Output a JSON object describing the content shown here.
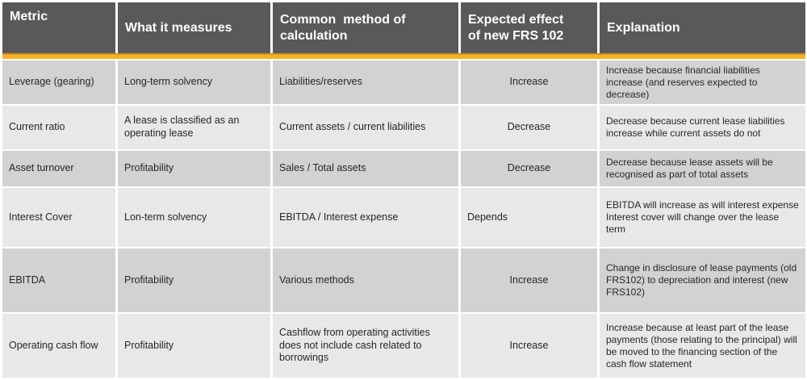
{
  "table": {
    "headers": [
      {
        "label": "Metric"
      },
      {
        "label": "What it measures"
      },
      {
        "label": "Common  method of\ncalculation"
      },
      {
        "label": "Expected effect\nof new FRS 102"
      },
      {
        "label": "Explanation"
      }
    ],
    "rows": [
      {
        "metric": "Leverage (gearing)",
        "measures": "Long-term solvency",
        "calculation": "Liabilities/reserves",
        "effect": "Increase",
        "explanation": "Increase because financial liabilities increase (and reserves expected to decrease)"
      },
      {
        "metric": "Current ratio",
        "measures": "A lease is classified as an operating lease",
        "calculation": "Current assets / current liabilities",
        "effect": "Decrease",
        "explanation": "Decrease because current lease liabilities increase while current assets do not"
      },
      {
        "metric": "Asset turnover",
        "measures": "Profitability",
        "calculation": "Sales / Total assets",
        "effect": "Decrease",
        "explanation": "Decrease because lease assets will be recognised as part of total assets"
      },
      {
        "metric": "Interest Cover",
        "measures": "Lon-term solvency",
        "calculation": "EBITDA / Interest expense",
        "effect": "Depends",
        "explanation": "EBITDA will increase as will interest expense\nInterest cover will change over the lease term"
      },
      {
        "metric": "EBITDA",
        "measures": "Profitability",
        "calculation": "Various methods",
        "effect": "Increase",
        "explanation": "Change in disclosure of lease payments (old FRS102) to depreciation and interest (new FRS102)"
      },
      {
        "metric": "Operating cash flow",
        "measures": "Profitability",
        "calculation": "Cashflow from operating activities does not include cash related to borrowings",
        "effect": "Increase",
        "explanation": "Increase because at least part of the lease payments (those relating to the principal) will be moved to the financing section of the cash flow statement"
      }
    ]
  },
  "colors": {
    "header_bg": "#595959",
    "header_text": "#ffffff",
    "accent_gold": "#F9B121",
    "accent_gold_dark": "#D6921F",
    "row_shade_dark": "#d2d2d2",
    "row_shade_light": "#e8e8e8",
    "body_text": "#262626"
  }
}
